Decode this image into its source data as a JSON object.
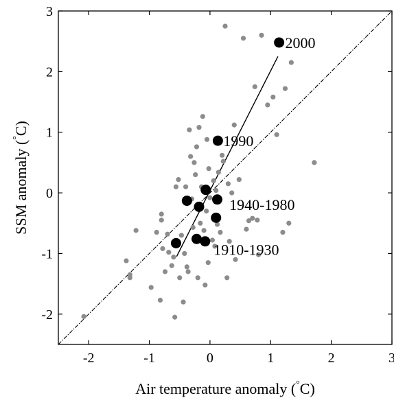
{
  "chart_data": {
    "type": "scatter",
    "xlabel_parts": [
      "Air temperature anomaly (",
      "°",
      "C)"
    ],
    "ylabel_parts": [
      "SSM anomaly (",
      "°",
      "C)"
    ],
    "xlim": [
      -2.5,
      3
    ],
    "ylim": [
      -2.5,
      3
    ],
    "xticks": [
      -2,
      -1,
      0,
      1,
      2,
      3
    ],
    "yticks": [
      -2,
      -1,
      0,
      1,
      2,
      3
    ],
    "xtick_labels": [
      "-2",
      "-1",
      "0",
      "1",
      "2",
      "3"
    ],
    "ytick_labels": [
      "-2",
      "-1",
      "0",
      "1",
      "2",
      "3"
    ],
    "grid": false,
    "colors": {
      "scatter_points": "#8c8c8c",
      "decadal_points": "#000000",
      "lines": "#000000"
    },
    "series": [
      {
        "role": "annual_points",
        "points": [
          [
            -2.08,
            -2.04
          ],
          [
            -1.38,
            -1.12
          ],
          [
            -1.32,
            -1.35
          ],
          [
            -1.32,
            -1.4
          ],
          [
            -1.22,
            -0.62
          ],
          [
            -0.97,
            -1.56
          ],
          [
            -0.88,
            -0.65
          ],
          [
            -0.82,
            -1.77
          ],
          [
            -0.8,
            -0.35
          ],
          [
            -0.8,
            -0.45
          ],
          [
            -0.78,
            -0.92
          ],
          [
            -0.74,
            -1.3
          ],
          [
            -0.7,
            -0.68
          ],
          [
            -0.68,
            -0.98
          ],
          [
            -0.63,
            -1.2
          ],
          [
            -0.6,
            -1.06
          ],
          [
            -0.58,
            -2.05
          ],
          [
            -0.56,
            0.1
          ],
          [
            -0.52,
            0.22
          ],
          [
            -0.5,
            -1.4
          ],
          [
            -0.47,
            -0.7
          ],
          [
            -0.44,
            -1.8
          ],
          [
            -0.42,
            -1.0
          ],
          [
            -0.4,
            0.1
          ],
          [
            -0.38,
            -1.22
          ],
          [
            -0.36,
            -1.3
          ],
          [
            -0.34,
            1.04
          ],
          [
            -0.32,
            0.6
          ],
          [
            -0.3,
            -0.1
          ],
          [
            -0.28,
            -0.57
          ],
          [
            -0.26,
            0.5
          ],
          [
            -0.24,
            0.3
          ],
          [
            -0.22,
            0.76
          ],
          [
            -0.2,
            -1.4
          ],
          [
            -0.18,
            1.08
          ],
          [
            -0.16,
            -0.5
          ],
          [
            -0.14,
            0.1
          ],
          [
            -0.12,
            1.26
          ],
          [
            -0.1,
            -0.62
          ],
          [
            -0.08,
            -1.52
          ],
          [
            -0.06,
            -0.3
          ],
          [
            -0.05,
            0.88
          ],
          [
            -0.03,
            -1.15
          ],
          [
            -0.02,
            0.4
          ],
          [
            0.0,
            -0.08
          ],
          [
            0.04,
            -0.78
          ],
          [
            0.06,
            0.2
          ],
          [
            0.08,
            -0.88
          ],
          [
            0.1,
            0.04
          ],
          [
            0.12,
            -0.52
          ],
          [
            0.14,
            0.34
          ],
          [
            0.17,
            -0.65
          ],
          [
            0.2,
            0.62
          ],
          [
            0.22,
            0.52
          ],
          [
            0.25,
            2.75
          ],
          [
            0.28,
            -1.4
          ],
          [
            0.3,
            0.15
          ],
          [
            0.32,
            -0.8
          ],
          [
            0.36,
            0.0
          ],
          [
            0.4,
            1.12
          ],
          [
            0.42,
            -1.1
          ],
          [
            0.48,
            0.22
          ],
          [
            0.55,
            2.55
          ],
          [
            0.6,
            -0.6
          ],
          [
            0.64,
            -0.46
          ],
          [
            0.7,
            -0.42
          ],
          [
            0.74,
            1.75
          ],
          [
            0.78,
            -0.45
          ],
          [
            0.8,
            -1.02
          ],
          [
            0.85,
            2.6
          ],
          [
            0.95,
            1.45
          ],
          [
            1.04,
            1.58
          ],
          [
            1.1,
            0.96
          ],
          [
            1.2,
            -0.65
          ],
          [
            1.24,
            1.72
          ],
          [
            1.3,
            -0.5
          ],
          [
            1.34,
            2.15
          ],
          [
            1.72,
            0.5
          ]
        ]
      },
      {
        "role": "decadal_means",
        "points": [
          [
            -0.56,
            -0.83
          ],
          [
            -0.38,
            -0.13
          ],
          [
            -0.22,
            -0.76
          ],
          [
            -0.18,
            -0.23
          ],
          [
            -0.08,
            -0.8
          ],
          [
            -0.07,
            0.05
          ],
          [
            0.1,
            -0.41
          ],
          [
            0.12,
            -0.11
          ],
          [
            0.13,
            0.86
          ],
          [
            1.14,
            2.48
          ]
        ]
      }
    ],
    "reference_line": {
      "style": "dash-dot",
      "from": [
        -2.5,
        -2.5
      ],
      "to": [
        3,
        3
      ]
    },
    "fit_line": {
      "from": [
        -0.55,
        -1.05
      ],
      "to": [
        1.12,
        2.25
      ]
    },
    "annotations": [
      {
        "text": "2000",
        "x": 1.24,
        "y": 2.48
      },
      {
        "text": "1990",
        "x": 0.22,
        "y": 0.86
      },
      {
        "text": "1940-1980",
        "x": 0.32,
        "y": -0.19
      },
      {
        "text": "1910-1930",
        "x": 0.06,
        "y": -0.93
      }
    ]
  }
}
